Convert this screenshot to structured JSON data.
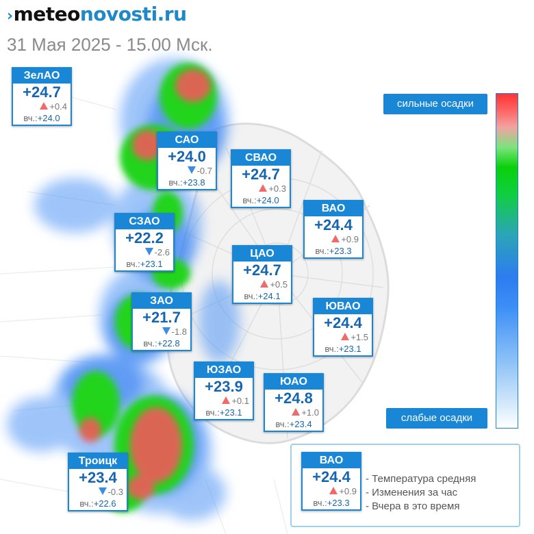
{
  "header": {
    "logo_part1": "meteo",
    "logo_part2": "novosti.ru",
    "date_label": "31 Мая 2025 - 15.00 Мск."
  },
  "districts": [
    {
      "name": "ЗелАО",
      "temp": "+24.7",
      "change": "+0.4",
      "trend": "up",
      "yesterday_label": "вч.:",
      "yesterday": "+24.0"
    },
    {
      "name": "САО",
      "temp": "+24.0",
      "change": "-0.7",
      "trend": "down",
      "yesterday_label": "вч.:",
      "yesterday": "+23.8"
    },
    {
      "name": "СВАО",
      "temp": "+24.7",
      "change": "+0.3",
      "trend": "up",
      "yesterday_label": "вч.:",
      "yesterday": "+24.0"
    },
    {
      "name": "ВАО",
      "temp": "+24.4",
      "change": "+0.9",
      "trend": "up",
      "yesterday_label": "вч.:",
      "yesterday": "+23.3"
    },
    {
      "name": "СЗАО",
      "temp": "+22.2",
      "change": "-2.6",
      "trend": "down",
      "yesterday_label": "вч.:",
      "yesterday": "+23.1"
    },
    {
      "name": "ЦАО",
      "temp": "+24.7",
      "change": "+0.5",
      "trend": "up",
      "yesterday_label": "вч.:",
      "yesterday": "+24.1"
    },
    {
      "name": "ЗАО",
      "temp": "+21.7",
      "change": "-1.8",
      "trend": "down",
      "yesterday_label": "вч.:",
      "yesterday": "+22.8"
    },
    {
      "name": "ЮВАО",
      "temp": "+24.4",
      "change": "+1.5",
      "trend": "up",
      "yesterday_label": "вч.:",
      "yesterday": "+23.1"
    },
    {
      "name": "ЮЗАО",
      "temp": "+23.9",
      "change": "+0.1",
      "trend": "up",
      "yesterday_label": "вч.:",
      "yesterday": "+23.1"
    },
    {
      "name": "ЮАО",
      "temp": "+24.8",
      "change": "+1.0",
      "trend": "up",
      "yesterday_label": "вч.:",
      "yesterday": "+23.4"
    },
    {
      "name": "Троицк",
      "temp": "+23.4",
      "change": "-0.3",
      "trend": "down",
      "yesterday_label": "вч.:",
      "yesterday": "+22.6"
    }
  ],
  "scale": {
    "top_label": "сильные осадки",
    "bottom_label": "слабые осадки",
    "colors": {
      "heavy": "#ff3434",
      "medium": "#0ad00a",
      "light": "#2d7cf0",
      "minimal": "#ffffff"
    }
  },
  "legend": {
    "sample": {
      "name": "ВАО",
      "temp": "+24.4",
      "change": "+0.9",
      "trend": "up",
      "yesterday_label": "вч.:",
      "yesterday": "+23.3"
    },
    "items": [
      "- Температура средняя",
      "- Изменения за час",
      "- Вчера в это время"
    ]
  },
  "colors": {
    "accent": "#1a87d6",
    "temp_text": "#1565b0",
    "trend_up": "#ef6b6b",
    "trend_down": "#3a8de3"
  }
}
